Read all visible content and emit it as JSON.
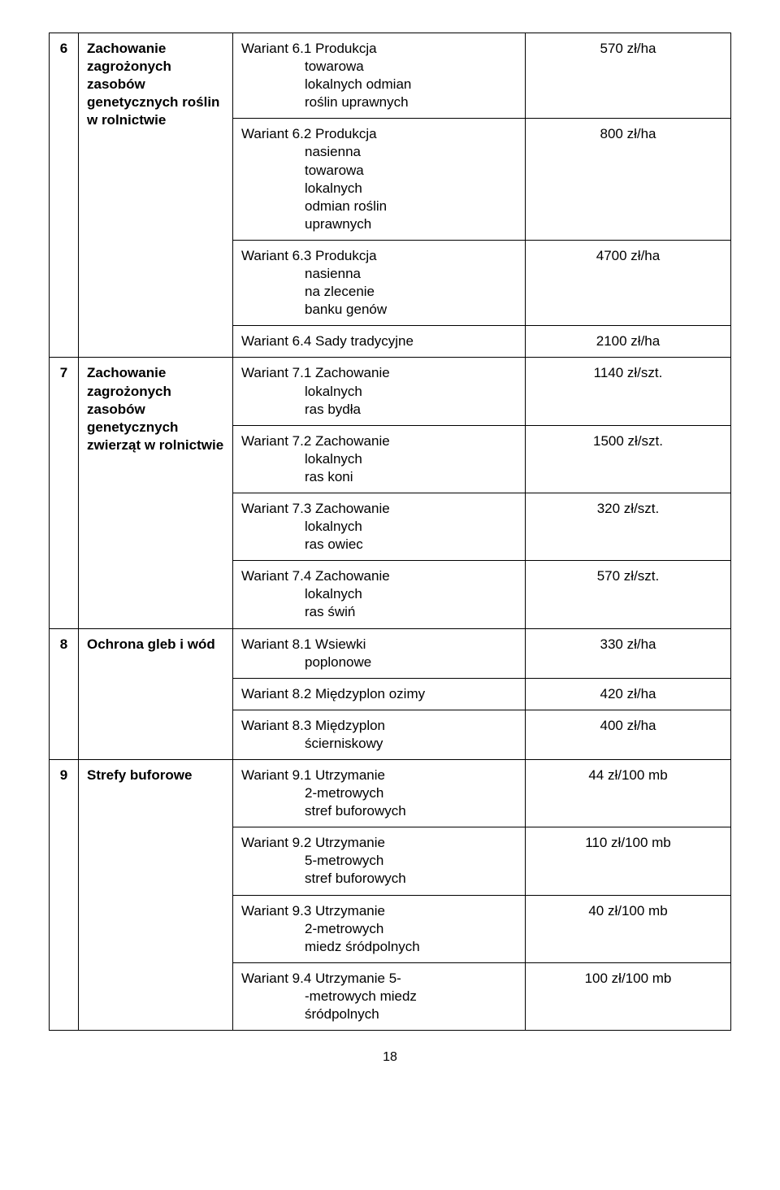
{
  "sections": [
    {
      "num": "6",
      "category": "Zachowanie zagrożonych zasobów genetycznych roślin w rolnictwie",
      "variants": [
        {
          "title": "Wariant 6.1 Produkcja",
          "subs": [
            "towarowa",
            "lokalnych odmian",
            "roślin uprawnych"
          ],
          "value": "570 zł/ha"
        },
        {
          "title": "Wariant 6.2 Produkcja",
          "subs": [
            "nasienna",
            "towarowa",
            "lokalnych",
            "odmian roślin",
            "uprawnych"
          ],
          "value": "800 zł/ha"
        },
        {
          "title": "Wariant 6.3 Produkcja",
          "subs": [
            "nasienna",
            "na zlecenie",
            "banku genów"
          ],
          "value": "4700 zł/ha"
        },
        {
          "title": "Wariant 6.4 Sady tradycyjne",
          "subs": [],
          "value": "2100 zł/ha"
        }
      ]
    },
    {
      "num": "7",
      "category": "Zachowanie zagrożonych zasobów genetycznych zwierząt w rolnictwie",
      "variants": [
        {
          "title": "Wariant 7.1 Zachowanie",
          "subs": [
            "lokalnych",
            "ras bydła"
          ],
          "value": "1140 zł/szt."
        },
        {
          "title": "Wariant 7.2 Zachowanie",
          "subs": [
            "lokalnych",
            "ras koni"
          ],
          "value": "1500 zł/szt."
        },
        {
          "title": "Wariant 7.3 Zachowanie",
          "subs": [
            "lokalnych",
            "ras owiec"
          ],
          "value": "320 zł/szt."
        },
        {
          "title": "Wariant 7.4 Zachowanie",
          "subs": [
            "lokalnych",
            "ras świń"
          ],
          "value": "570 zł/szt."
        }
      ]
    },
    {
      "num": "8",
      "category": "Ochrona gleb i wód",
      "variants": [
        {
          "title": "Wariant 8.1 Wsiewki",
          "subs": [
            "poplonowe"
          ],
          "value": "330 zł/ha"
        },
        {
          "title": "Wariant 8.2 Międzyplon ozimy",
          "subs": [],
          "value": "420 zł/ha"
        },
        {
          "title": "Wariant 8.3 Międzyplon",
          "subs": [
            "ścierniskowy"
          ],
          "value": "400 zł/ha"
        }
      ]
    },
    {
      "num": "9",
      "category": "Strefy buforowe",
      "variants": [
        {
          "title": "Wariant 9.1 Utrzymanie",
          "subs": [
            "2-metrowych",
            "stref buforowych"
          ],
          "value": "44 zł/100 mb"
        },
        {
          "title": "Wariant 9.2 Utrzymanie",
          "subs": [
            "5-metrowych",
            "stref buforowych"
          ],
          "value": "110 zł/100 mb"
        },
        {
          "title": "Wariant 9.3 Utrzymanie",
          "subs": [
            "2-metrowych",
            "miedz śródpolnych"
          ],
          "value": "40 zł/100 mb"
        },
        {
          "title": "Wariant 9.4 Utrzymanie 5-",
          "subs": [
            "-metrowych miedz",
            "śródpolnych"
          ],
          "value": "100 zł/100 mb"
        }
      ]
    }
  ],
  "page_number": "18"
}
